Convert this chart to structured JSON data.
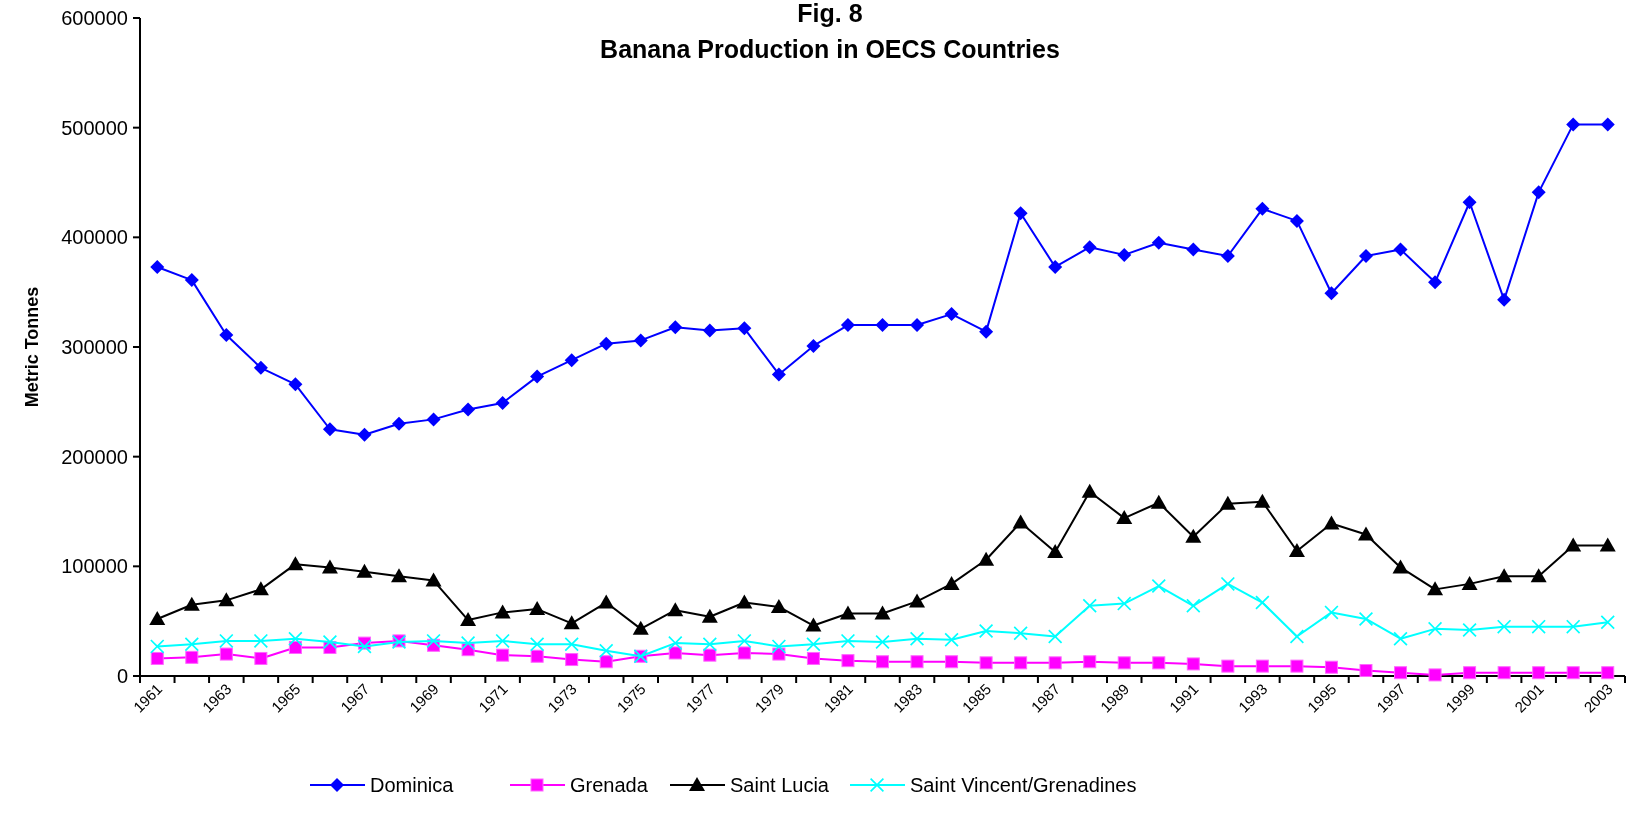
{
  "chart_data": {
    "type": "line",
    "title": "Fig. 8",
    "subtitle": "Banana Production in OECS Countries",
    "ylabel": "Metric Tonnes",
    "categories": [
      "1961",
      null,
      "1963",
      null,
      "1965",
      null,
      "1967",
      null,
      "1969",
      null,
      "1971",
      null,
      "1973",
      null,
      "1975",
      null,
      "1977",
      null,
      "1979",
      null,
      "1981",
      null,
      "1983",
      null,
      "1985",
      null,
      "1987",
      null,
      "1989",
      null,
      "1991",
      null,
      "1993",
      null,
      "1995",
      null,
      "1997",
      null,
      "1999",
      null,
      "2001",
      null,
      "2003"
    ],
    "series": [
      {
        "name": "Dominica",
        "color": "#0000ff",
        "marker": "diamond",
        "values": [
          373000,
          361000,
          311000,
          281000,
          266000,
          225000,
          220000,
          230000,
          234000,
          243000,
          249000,
          273000,
          288000,
          303000,
          306000,
          318000,
          315000,
          317000,
          275000,
          301000,
          320000,
          320000,
          320000,
          330000,
          314000,
          422000,
          373000,
          391000,
          384000,
          395000,
          389000,
          383000,
          426000,
          415000,
          349000,
          383000,
          389000,
          359000,
          432000,
          343000,
          441000,
          503000,
          503000
        ]
      },
      {
        "name": "Grenada",
        "color": "#ff00ff",
        "marker": "square",
        "values": [
          16000,
          17000,
          20000,
          16000,
          26000,
          26000,
          30000,
          32000,
          28000,
          24000,
          19000,
          18000,
          15000,
          13000,
          18000,
          21000,
          19000,
          21000,
          20000,
          16000,
          14000,
          13000,
          13000,
          13000,
          12000,
          12000,
          12000,
          13000,
          12000,
          12000,
          11000,
          9000,
          9000,
          9000,
          8000,
          5000,
          3000,
          1000,
          3000,
          3000,
          3000,
          3000,
          3000
        ]
      },
      {
        "name": "Saint Lucia",
        "color": "#000000",
        "marker": "triangle",
        "values": [
          52000,
          65000,
          69000,
          79000,
          102000,
          99000,
          95000,
          91000,
          87000,
          51000,
          58000,
          61000,
          48000,
          67000,
          43000,
          60000,
          54000,
          67000,
          63000,
          46000,
          57000,
          57000,
          68000,
          84000,
          106000,
          140000,
          113000,
          168000,
          144000,
          158000,
          127000,
          157000,
          159000,
          114000,
          139000,
          129000,
          99000,
          79000,
          84000,
          91000,
          91000,
          119000,
          119000
        ]
      },
      {
        "name": "Saint Vincent/Grenadines",
        "color": "#00ffff",
        "marker": "cross",
        "values": [
          27000,
          29000,
          32000,
          32000,
          34000,
          31000,
          27000,
          31000,
          32000,
          30000,
          32000,
          29000,
          29000,
          23000,
          18000,
          30000,
          29000,
          32000,
          27000,
          29000,
          32000,
          31000,
          34000,
          33000,
          41000,
          39000,
          36000,
          64000,
          66000,
          82000,
          64000,
          84000,
          67000,
          36000,
          58000,
          52000,
          34000,
          43000,
          42000,
          45000,
          45000,
          45000,
          49000
        ]
      }
    ],
    "ylim": [
      0,
      600000
    ],
    "yticks": [
      0,
      100000,
      200000,
      300000,
      400000,
      500000,
      600000
    ],
    "grid": false,
    "legend": "bottom"
  }
}
